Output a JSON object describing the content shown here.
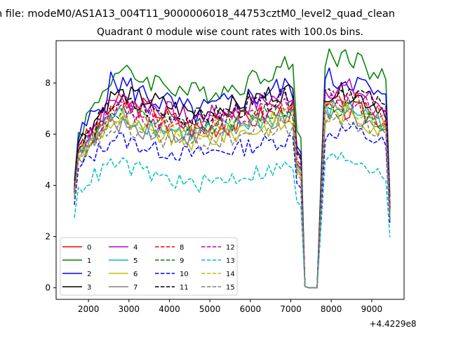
{
  "figure": {
    "suptitle": "n file: modeM0/AS1A13_004T11_9000006018_44753cztM0_level2_quad_clean"
  },
  "chart_data": {
    "type": "line",
    "title": "Quadrant 0 module wise count rates with 100.0s bins.",
    "xlabel": "",
    "ylabel": "",
    "x_offset_label": "+4.4229e8",
    "xlim": [
      1200,
      9800
    ],
    "ylim": [
      -0.45,
      9.65
    ],
    "xticks": [
      2000,
      3000,
      4000,
      5000,
      6000,
      7000,
      8000,
      9000
    ],
    "yticks": [
      0,
      2,
      4,
      6,
      8
    ],
    "legend_position": "lower-left",
    "legend_columns": 4,
    "bin_width_s": 100,
    "x_start": 1650,
    "x_end": 9450,
    "dip_start_x": 7200,
    "dip_end_x": 7850,
    "series": [
      {
        "name": "0",
        "color": "#ff0000",
        "dash": "solid",
        "levels": [
          5.2,
          7.2,
          7.0,
          6.2,
          6.4,
          6.8,
          7.0,
          6.9,
          6.6
        ],
        "noise": 0.45
      },
      {
        "name": "1",
        "color": "#008000",
        "dash": "solid",
        "levels": [
          5.8,
          8.4,
          8.1,
          7.6,
          7.8,
          8.5,
          8.9,
          9.1,
          7.9
        ],
        "noise": 0.45
      },
      {
        "name": "2",
        "color": "#0000ff",
        "dash": "solid",
        "levels": [
          5.5,
          8.1,
          7.4,
          6.8,
          7.2,
          7.7,
          8.0,
          8.2,
          7.1
        ],
        "noise": 0.55
      },
      {
        "name": "3",
        "color": "#000000",
        "dash": "solid",
        "levels": [
          5.4,
          7.6,
          7.3,
          6.8,
          7.1,
          7.6,
          7.7,
          7.6,
          6.9
        ],
        "noise": 0.4
      },
      {
        "name": "4",
        "color": "#bf00bf",
        "dash": "solid",
        "levels": [
          5.3,
          7.4,
          7.1,
          6.6,
          6.9,
          7.4,
          7.7,
          7.8,
          7.0
        ],
        "noise": 0.4
      },
      {
        "name": "5",
        "color": "#00bfbf",
        "dash": "solid",
        "levels": [
          5.1,
          6.8,
          6.3,
          6.0,
          6.3,
          6.6,
          6.9,
          7.0,
          6.4
        ],
        "noise": 0.4
      },
      {
        "name": "6",
        "color": "#bfbf00",
        "dash": "solid",
        "levels": [
          5.0,
          6.6,
          6.0,
          5.7,
          6.0,
          6.3,
          6.6,
          6.8,
          6.0
        ],
        "noise": 0.4
      },
      {
        "name": "7",
        "color": "#808080",
        "dash": "solid",
        "levels": [
          4.9,
          6.5,
          6.1,
          5.9,
          6.2,
          6.5,
          6.7,
          6.8,
          6.1
        ],
        "noise": 0.4
      },
      {
        "name": "8",
        "color": "#ff0000",
        "dash": "dashed",
        "levels": [
          5.1,
          7.0,
          6.6,
          6.3,
          6.6,
          7.0,
          7.2,
          7.4,
          6.6
        ],
        "noise": 0.4
      },
      {
        "name": "9",
        "color": "#008000",
        "dash": "dashed",
        "levels": [
          5.0,
          6.9,
          6.5,
          6.3,
          6.5,
          6.9,
          7.0,
          7.1,
          6.3
        ],
        "noise": 0.4
      },
      {
        "name": "10",
        "color": "#0000ff",
        "dash": "dashed",
        "levels": [
          4.5,
          5.9,
          5.4,
          5.2,
          5.4,
          5.7,
          5.9,
          6.2,
          5.5
        ],
        "noise": 0.35
      },
      {
        "name": "11",
        "color": "#000000",
        "dash": "dashed",
        "levels": [
          5.2,
          7.3,
          6.9,
          6.6,
          6.9,
          7.3,
          7.6,
          7.8,
          6.9
        ],
        "noise": 0.4
      },
      {
        "name": "12",
        "color": "#bf00bf",
        "dash": "dashed",
        "levels": [
          5.1,
          7.0,
          6.6,
          6.3,
          6.6,
          7.0,
          7.2,
          7.4,
          6.6
        ],
        "noise": 0.4
      },
      {
        "name": "13",
        "color": "#00bfbf",
        "dash": "dashed",
        "levels": [
          3.8,
          4.9,
          4.4,
          4.0,
          4.3,
          4.6,
          4.9,
          5.1,
          4.4
        ],
        "noise": 0.35
      },
      {
        "name": "14",
        "color": "#bfbf00",
        "dash": "dashed",
        "levels": [
          5.0,
          6.7,
          6.3,
          6.1,
          6.3,
          6.7,
          6.9,
          7.0,
          6.2
        ],
        "noise": 0.4
      },
      {
        "name": "15",
        "color": "#808080",
        "dash": "dashed",
        "levels": [
          4.8,
          6.3,
          5.9,
          5.6,
          5.9,
          6.2,
          6.4,
          6.6,
          5.9
        ],
        "noise": 0.4
      }
    ]
  }
}
